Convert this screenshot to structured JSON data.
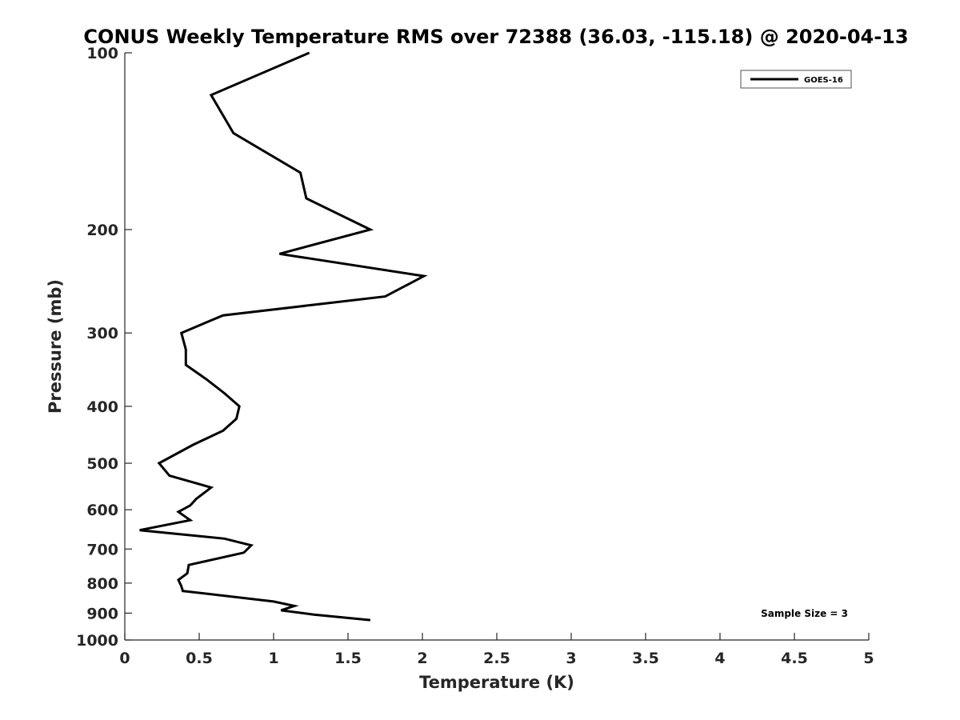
{
  "chart_data": {
    "type": "line",
    "title": "CONUS Weekly Temperature RMS over 72388 (36.03, -115.18) @ 2020-04-13",
    "xlabel": "Temperature (K)",
    "ylabel": "Pressure (mb)",
    "xlim": [
      0,
      5
    ],
    "ylim": [
      100,
      1000
    ],
    "y_scale": "log",
    "y_reversed": true,
    "x_ticks": [
      0,
      0.5,
      1,
      1.5,
      2,
      2.5,
      3,
      3.5,
      4,
      4.5,
      5
    ],
    "x_tick_labels": [
      "0",
      "0.5",
      "1",
      "1.5",
      "2",
      "2.5",
      "3",
      "3.5",
      "4",
      "4.5",
      "5"
    ],
    "y_ticks": [
      100,
      200,
      300,
      400,
      500,
      600,
      700,
      800,
      900,
      1000
    ],
    "y_tick_labels": [
      "100",
      "200",
      "300",
      "400",
      "500",
      "600",
      "700",
      "800",
      "900",
      "1000"
    ],
    "grid": false,
    "legend_position": "top-right",
    "series": [
      {
        "name": "GOES-16",
        "color": "#000000",
        "points": [
          [
            1.24,
            100
          ],
          [
            0.58,
            118
          ],
          [
            0.73,
            137
          ],
          [
            1.18,
            160
          ],
          [
            1.22,
            177
          ],
          [
            1.65,
            200
          ],
          [
            1.04,
            220
          ],
          [
            2.01,
            240
          ],
          [
            1.75,
            260
          ],
          [
            0.66,
            280
          ],
          [
            0.38,
            300
          ],
          [
            0.41,
            320
          ],
          [
            0.41,
            340
          ],
          [
            0.55,
            360
          ],
          [
            0.67,
            380
          ],
          [
            0.77,
            400
          ],
          [
            0.75,
            420
          ],
          [
            0.66,
            440
          ],
          [
            0.46,
            465
          ],
          [
            0.23,
            500
          ],
          [
            0.3,
            525
          ],
          [
            0.58,
            550
          ],
          [
            0.48,
            575
          ],
          [
            0.44,
            590
          ],
          [
            0.36,
            605
          ],
          [
            0.44,
            625
          ],
          [
            0.1,
            650
          ],
          [
            0.67,
            672
          ],
          [
            0.85,
            690
          ],
          [
            0.8,
            710
          ],
          [
            0.43,
            745
          ],
          [
            0.42,
            770
          ],
          [
            0.36,
            790
          ],
          [
            0.38,
            810
          ],
          [
            0.39,
            825
          ],
          [
            1,
            860
          ],
          [
            1.14,
            875
          ],
          [
            1.05,
            890
          ],
          [
            1.27,
            905
          ],
          [
            1.65,
            925
          ]
        ]
      }
    ],
    "annotations": [
      {
        "text": "Sample Size = 3",
        "position": "bottom-right"
      }
    ]
  }
}
